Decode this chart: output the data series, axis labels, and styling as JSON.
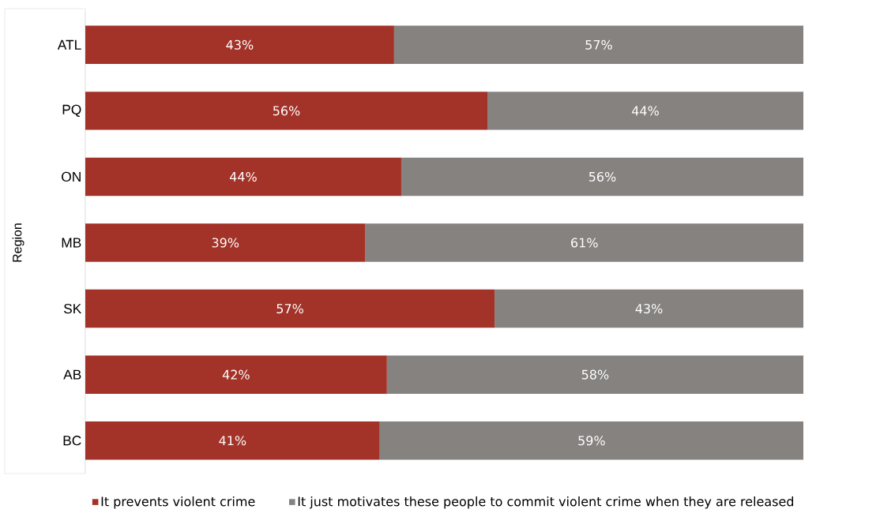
{
  "chart_data": {
    "type": "bar",
    "orientation": "horizontal",
    "stacked": true,
    "ylabel": "Region",
    "categories": [
      "ATL",
      "PQ",
      "ON",
      "MB",
      "SK",
      "AB",
      "BC"
    ],
    "series": [
      {
        "name": "It prevents violent crime",
        "color": "#a33228",
        "values": [
          43,
          56,
          44,
          39,
          57,
          42,
          41
        ],
        "value_labels": [
          "43%",
          "56%",
          "44%",
          "39%",
          "57%",
          "42%",
          "41%"
        ]
      },
      {
        "name": "It just motivates these people to commit violent crime when they are released",
        "color": "#858280",
        "values": [
          57,
          44,
          56,
          61,
          43,
          58,
          59
        ],
        "value_labels": [
          "57%",
          "44%",
          "56%",
          "61%",
          "43%",
          "58%",
          "59%"
        ]
      }
    ],
    "tick_labels": "y",
    "legend": "bottom",
    "grid": false
  }
}
